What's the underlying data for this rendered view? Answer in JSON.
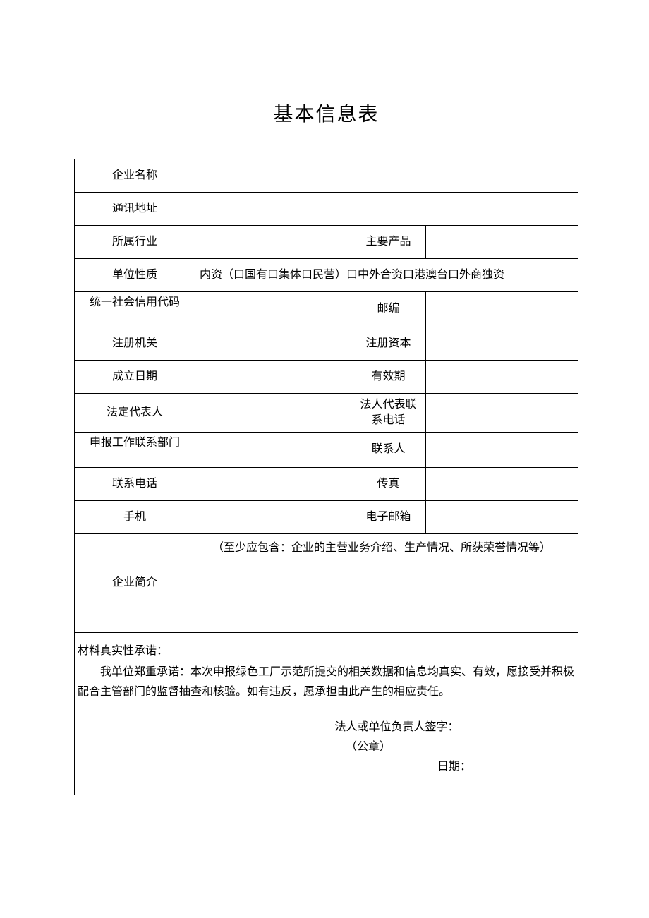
{
  "title": "基本信息表",
  "labels": {
    "company_name": "企业名称",
    "address": "通讯地址",
    "industry": "所属行业",
    "main_product": "主要产品",
    "unit_nature": "单位性质",
    "credit_code": "统一社会信用代码",
    "postcode": "邮编",
    "reg_authority": "注册机关",
    "reg_capital": "注册资本",
    "establish_date": "成立日期",
    "valid_period": "有效期",
    "legal_rep": "法定代表人",
    "legal_rep_phone": "法人代表联系电话",
    "dept": "申报工作联系部门",
    "contact": "联系人",
    "phone": "联系电话",
    "fax": "传真",
    "mobile": "手机",
    "email": "电子邮箱",
    "intro": "企业简介"
  },
  "unit_nature_options": "内资（口国有口集体口民营）口中外合资口港澳台口外商独资",
  "intro_hint": "（至少应包含：企业的主营业务介绍、生产情况、所获荣誉情况等）",
  "declaration": {
    "title": "材料真实性承诺：",
    "body": "我单位郑重承诺：本次申报绿色工厂示范所提交的相关数据和信息均真实、有效，愿接受并积极配合主管部门的监督抽查和核验。如有违反，愿承担由此产生的相应责任。",
    "sig": "法人或单位负责人签字：",
    "seal": "（公章）",
    "date": "日期："
  },
  "values": {
    "company_name": "",
    "address": "",
    "industry": "",
    "main_product": "",
    "credit_code": "",
    "postcode": "",
    "reg_authority": "",
    "reg_capital": "",
    "establish_date": "",
    "valid_period": "",
    "legal_rep": "",
    "legal_rep_phone": "",
    "dept": "",
    "contact": "",
    "phone": "",
    "fax": "",
    "mobile": "",
    "email": ""
  },
  "colors": {
    "text": "#000000",
    "background": "#ffffff",
    "border": "#000000"
  },
  "typography": {
    "title_fontsize": 28,
    "body_fontsize": 16,
    "font_family": "SimSun"
  }
}
